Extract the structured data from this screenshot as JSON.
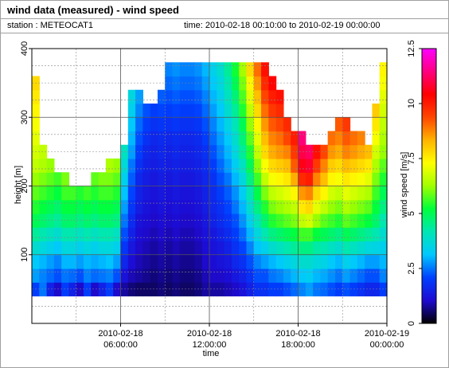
{
  "header": {
    "title": "wind data (measured) - wind speed",
    "station": "station : METEOCAT1",
    "time_range": "time: 2010-02-18 00:10:00 to 2010-02-19 00:00:00"
  },
  "chart_data": {
    "type": "heatmap",
    "title": "wind data (measured) - wind speed",
    "xlabel": "time",
    "ylabel": "height [m]",
    "colorbar_label": "wind speed [m/s]",
    "x_range_hours": [
      0,
      24
    ],
    "ylim": [
      0,
      400
    ],
    "zlim": [
      0,
      12.5
    ],
    "x_ticks": [
      {
        "hour": 6,
        "line1": "2010-02-18",
        "line2": "06:00:00"
      },
      {
        "hour": 12,
        "line1": "2010-02-18",
        "line2": "12:00:00"
      },
      {
        "hour": 18,
        "line1": "2010-02-18",
        "line2": "18:00:00"
      },
      {
        "hour": 24,
        "line1": "2010-02-19",
        "line2": "00:00:00"
      }
    ],
    "y_ticks": [
      100,
      200,
      300,
      400
    ],
    "colorbar_ticks": [
      "0",
      "2.5",
      "5",
      "7.5",
      "10",
      "12.5"
    ],
    "grid": true,
    "colormap": [
      "#000000",
      "#1e0ad2",
      "#0040ff",
      "#00c8ff",
      "#00e6b4",
      "#00ff3c",
      "#a0ff00",
      "#ffff00",
      "#ffb400",
      "#ff4600",
      "#ff0000",
      "#ff0080",
      "#ff00ff"
    ],
    "height_bins_m": [
      40,
      60,
      80,
      100,
      120,
      140,
      160,
      180,
      200,
      220,
      240,
      260,
      280,
      300,
      320,
      340,
      360
    ],
    "time_bins_hours": [
      0,
      0.5,
      1,
      1.5,
      2,
      2.5,
      3,
      3.5,
      4,
      4.5,
      5,
      5.5,
      6,
      6.5,
      7,
      7.5,
      8,
      8.5,
      9,
      9.5,
      10,
      10.5,
      11,
      11.5,
      12,
      12.5,
      13,
      13.5,
      14,
      14.5,
      15,
      15.5,
      16,
      16.5,
      17,
      17.5,
      18,
      18.5,
      19,
      19.5,
      20,
      20.5,
      21,
      21.5,
      22,
      22.5,
      23,
      23.5
    ],
    "column_top_height_m": [
      340,
      240,
      220,
      210,
      200,
      195,
      190,
      195,
      200,
      210,
      220,
      230,
      250,
      320,
      330,
      310,
      300,
      320,
      360,
      370,
      360,
      360,
      360,
      360,
      360,
      360,
      360,
      360,
      360,
      360,
      360,
      360,
      340,
      330,
      280,
      270,
      260,
      250,
      240,
      250,
      260,
      290,
      280,
      270,
      260,
      250,
      300,
      360
    ],
    "wind_speed_ms_by_height": [
      [
        2.0,
        2.5,
        1.5,
        1.0,
        2.0,
        1.5,
        1.0,
        2.0,
        1.0,
        1.5,
        2.0,
        1.0,
        0.8,
        0.6,
        0.5,
        0.5,
        0.5,
        0.6,
        0.5,
        0.6,
        0.5,
        0.5,
        0.6,
        0.8,
        0.8,
        0.8,
        0.9,
        1.0,
        1.2,
        1.5,
        1.8,
        1.8,
        2.0,
        2.0,
        2.2,
        2.4,
        2.6,
        2.8,
        2.5,
        2.4,
        2.2,
        2.0,
        2.2,
        2.0,
        1.8,
        1.6,
        1.6,
        2.0
      ],
      [
        2.8,
        2.6,
        2.4,
        2.2,
        2.5,
        2.4,
        2.2,
        2.6,
        2.4,
        2.5,
        2.6,
        2.2,
        1.2,
        0.9,
        0.8,
        0.7,
        0.6,
        0.7,
        0.6,
        0.7,
        0.6,
        0.6,
        0.7,
        0.9,
        1.0,
        1.0,
        1.1,
        1.3,
        1.5,
        1.8,
        2.2,
        2.2,
        2.5,
        2.6,
        2.8,
        3.0,
        3.2,
        3.3,
        3.0,
        2.9,
        2.7,
        2.5,
        2.8,
        2.6,
        2.4,
        2.2,
        2.2,
        2.6
      ],
      [
        3.2,
        3.0,
        2.8,
        2.6,
        3.0,
        3.0,
        2.8,
        3.0,
        2.9,
        3.0,
        3.1,
        2.8,
        1.6,
        1.1,
        0.9,
        0.8,
        0.7,
        0.8,
        0.7,
        0.8,
        0.7,
        0.7,
        0.8,
        1.0,
        1.1,
        1.2,
        1.3,
        1.6,
        1.8,
        2.2,
        2.6,
        2.8,
        3.0,
        3.2,
        3.4,
        3.6,
        3.8,
        3.8,
        3.6,
        3.5,
        3.2,
        3.0,
        3.4,
        3.2,
        3.0,
        2.8,
        2.8,
        3.0
      ],
      [
        3.8,
        3.6,
        3.4,
        3.2,
        3.6,
        3.6,
        3.4,
        3.6,
        3.4,
        3.6,
        3.6,
        3.4,
        1.9,
        1.3,
        1.0,
        0.9,
        0.8,
        0.9,
        0.8,
        0.9,
        0.8,
        0.8,
        0.9,
        1.1,
        1.2,
        1.3,
        1.5,
        1.8,
        2.1,
        2.6,
        3.1,
        3.4,
        3.8,
        4.0,
        4.2,
        4.4,
        4.6,
        4.6,
        4.3,
        4.2,
        4.0,
        3.8,
        4.2,
        4.0,
        3.8,
        3.6,
        3.5,
        3.4
      ],
      [
        4.4,
        4.2,
        4.0,
        3.8,
        4.2,
        4.2,
        4.0,
        4.2,
        4.0,
        4.2,
        4.2,
        4.0,
        2.2,
        1.5,
        1.1,
        1.0,
        0.9,
        1.0,
        0.9,
        1.0,
        0.9,
        0.9,
        1.0,
        1.2,
        1.3,
        1.5,
        1.7,
        2.0,
        2.4,
        3.0,
        3.6,
        4.2,
        4.6,
        4.8,
        5.0,
        5.2,
        5.6,
        5.6,
        5.2,
        5.0,
        4.8,
        4.6,
        5.0,
        4.8,
        4.6,
        4.4,
        4.2,
        3.8
      ],
      [
        5.0,
        4.8,
        4.6,
        4.4,
        4.8,
        4.8,
        4.6,
        4.8,
        4.6,
        4.8,
        4.8,
        4.6,
        2.5,
        1.7,
        1.2,
        1.1,
        1.0,
        1.1,
        1.0,
        1.1,
        1.0,
        1.0,
        1.1,
        1.3,
        1.5,
        1.7,
        1.9,
        2.2,
        2.7,
        3.4,
        4.1,
        4.8,
        5.4,
        5.6,
        5.8,
        6.0,
        6.6,
        6.8,
        6.2,
        5.8,
        5.6,
        5.4,
        5.8,
        5.6,
        5.4,
        5.2,
        4.8,
        4.2
      ],
      [
        5.4,
        5.2,
        5.0,
        4.8,
        5.2,
        5.2,
        5.0,
        5.2,
        5.0,
        5.2,
        5.2,
        5.0,
        2.8,
        1.9,
        1.4,
        1.2,
        1.1,
        1.2,
        1.1,
        1.2,
        1.1,
        1.1,
        1.2,
        1.4,
        1.6,
        1.8,
        2.1,
        2.5,
        3.0,
        3.8,
        4.6,
        5.4,
        6.0,
        6.2,
        6.4,
        6.6,
        7.6,
        7.8,
        7.0,
        6.6,
        6.2,
        6.0,
        6.4,
        6.2,
        6.0,
        5.8,
        5.2,
        4.6
      ],
      [
        5.8,
        5.6,
        5.4,
        5.2,
        5.6,
        5.6,
        5.4,
        5.6,
        5.4,
        5.6,
        5.6,
        5.4,
        3.1,
        2.1,
        1.5,
        1.3,
        1.2,
        1.3,
        1.2,
        1.3,
        1.2,
        1.2,
        1.3,
        1.5,
        1.7,
        2.0,
        2.3,
        2.7,
        3.3,
        4.2,
        5.1,
        6.0,
        6.6,
        6.8,
        7.0,
        7.4,
        8.6,
        8.8,
        7.8,
        7.4,
        6.8,
        6.6,
        7.0,
        6.8,
        6.6,
        6.4,
        5.6,
        5.0
      ],
      [
        6.2,
        6.0,
        5.8,
        5.6,
        6.0,
        6.0,
        5.8,
        6.0,
        5.8,
        6.0,
        6.0,
        5.8,
        3.4,
        2.3,
        1.6,
        1.4,
        1.3,
        1.4,
        1.3,
        1.4,
        1.3,
        1.3,
        1.4,
        1.6,
        1.8,
        2.2,
        2.5,
        3.0,
        3.6,
        4.6,
        5.6,
        6.6,
        7.2,
        7.4,
        7.6,
        8.4,
        9.8,
        10.0,
        8.8,
        8.2,
        7.4,
        7.2,
        7.6,
        7.4,
        7.2,
        7.0,
        6.0,
        5.4
      ],
      [
        6.6,
        6.4,
        6.2,
        6.0,
        6.4,
        6.4,
        6.2,
        6.4,
        6.2,
        6.4,
        6.4,
        6.2,
        3.7,
        2.5,
        1.8,
        1.5,
        1.4,
        1.5,
        1.4,
        1.5,
        1.4,
        1.4,
        1.5,
        1.7,
        2.0,
        2.4,
        2.8,
        3.3,
        4.0,
        5.0,
        6.1,
        7.2,
        7.8,
        8.0,
        8.2,
        9.2,
        10.6,
        10.8,
        9.6,
        8.8,
        8.0,
        7.8,
        8.2,
        8.0,
        7.8,
        7.6,
        6.4,
        5.8
      ],
      [
        6.8,
        6.6,
        6.4,
        6.2,
        6.6,
        6.6,
        6.4,
        6.6,
        6.4,
        6.6,
        6.6,
        6.4,
        4.0,
        2.8,
        2.0,
        1.6,
        1.5,
        1.6,
        1.5,
        1.6,
        1.5,
        1.5,
        1.6,
        1.8,
        2.2,
        2.6,
        3.0,
        3.6,
        4.4,
        5.4,
        6.6,
        7.8,
        8.4,
        8.6,
        8.8,
        9.6,
        11.0,
        11.2,
        10.2,
        9.4,
        8.6,
        8.4,
        8.8,
        8.6,
        8.4,
        8.2,
        6.8,
        6.2
      ],
      [
        7.0,
        6.8,
        6.6,
        6.4,
        6.8,
        6.8,
        6.6,
        6.8,
        6.6,
        6.8,
        6.8,
        6.6,
        4.3,
        3.0,
        2.2,
        1.8,
        1.6,
        1.7,
        1.6,
        1.7,
        1.6,
        1.6,
        1.7,
        2.0,
        2.4,
        2.8,
        3.2,
        3.8,
        4.7,
        5.8,
        7.0,
        8.2,
        8.8,
        9.0,
        9.4,
        10.0,
        11.4,
        11.6,
        10.6,
        9.8,
        9.0,
        8.8,
        9.2,
        9.0,
        8.8,
        8.6,
        7.2,
        6.4
      ],
      [
        7.2,
        7.0,
        6.8,
        6.6,
        7.0,
        7.0,
        6.8,
        7.0,
        6.8,
        7.0,
        7.0,
        6.8,
        4.6,
        3.2,
        2.4,
        2.0,
        1.8,
        1.9,
        1.8,
        1.9,
        1.8,
        1.8,
        1.9,
        2.2,
        2.6,
        3.0,
        3.5,
        4.1,
        5.0,
        6.2,
        7.4,
        8.6,
        9.2,
        9.4,
        9.8,
        10.4,
        11.8,
        12.0,
        11.0,
        10.2,
        9.4,
        9.2,
        9.6,
        9.4,
        9.2,
        9.0,
        7.6,
        6.6
      ],
      [
        7.4,
        7.2,
        7.0,
        6.8,
        7.2,
        7.2,
        7.0,
        7.2,
        7.0,
        7.2,
        7.2,
        7.0,
        4.9,
        3.4,
        2.6,
        2.2,
        2.0,
        2.1,
        2.0,
        2.1,
        2.0,
        2.0,
        2.1,
        2.4,
        2.8,
        3.2,
        3.8,
        4.4,
        5.4,
        6.6,
        7.8,
        9.0,
        9.6,
        9.8,
        10.2,
        10.8,
        12.2,
        12.3,
        11.4,
        10.6,
        9.8,
        9.6,
        10.0,
        9.8,
        9.6,
        9.4,
        8.0,
        6.8
      ],
      [
        7.6,
        7.4,
        7.2,
        7.0,
        7.4,
        7.4,
        7.2,
        7.4,
        7.2,
        7.4,
        7.4,
        7.2,
        5.2,
        3.6,
        2.8,
        2.4,
        2.2,
        2.3,
        2.2,
        2.3,
        2.2,
        2.2,
        2.3,
        2.6,
        3.0,
        3.4,
        4.0,
        4.7,
        5.7,
        7.0,
        8.2,
        9.4,
        10.0,
        10.2,
        10.6,
        11.2,
        12.4,
        12.4,
        11.8,
        11.0,
        10.2,
        10.0,
        10.4,
        10.2,
        10.0,
        9.8,
        8.4,
        7.0
      ],
      [
        7.8,
        7.6,
        7.4,
        7.2,
        7.6,
        7.6,
        7.4,
        7.6,
        7.4,
        7.6,
        7.6,
        7.4,
        5.5,
        3.8,
        3.0,
        2.6,
        2.4,
        2.5,
        2.4,
        2.5,
        2.4,
        2.4,
        2.5,
        2.8,
        3.2,
        3.6,
        4.2,
        5.0,
        6.0,
        7.4,
        8.6,
        9.8,
        10.4,
        10.6,
        11.0,
        11.6,
        12.5,
        12.5,
        12.2,
        11.4,
        10.6,
        10.4,
        10.8,
        10.6,
        10.4,
        10.2,
        8.8,
        7.2
      ],
      [
        8.0,
        7.8,
        7.6,
        7.4,
        7.8,
        7.8,
        7.6,
        7.8,
        7.6,
        7.8,
        7.8,
        7.6,
        5.8,
        4.0,
        3.2,
        2.8,
        2.6,
        2.7,
        2.6,
        2.7,
        2.6,
        2.6,
        2.7,
        3.0,
        3.4,
        3.8,
        4.4,
        5.3,
        6.3,
        7.8,
        9.0,
        10.2,
        10.8,
        11.0,
        11.4,
        12.0,
        12.5,
        12.5,
        12.5,
        11.8,
        11.0,
        10.8,
        11.2,
        11.0,
        10.8,
        10.6,
        9.2,
        7.4
      ]
    ]
  }
}
